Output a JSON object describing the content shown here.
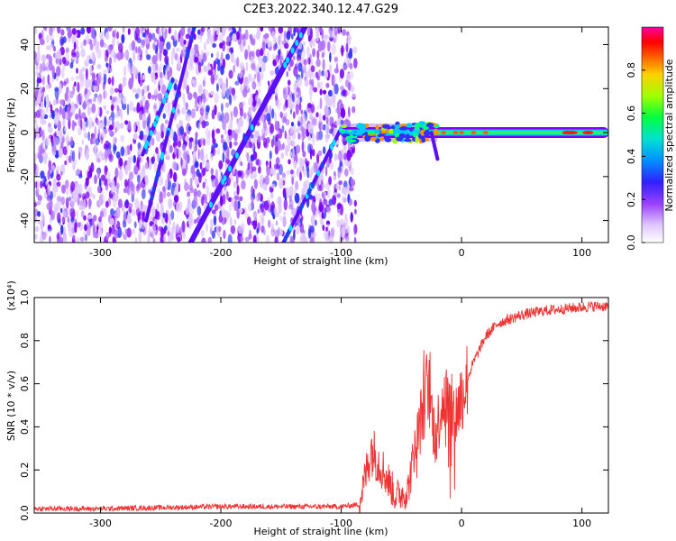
{
  "title": "C2E3.2022.340.12.47.G29",
  "colors": {
    "spectrogram_scale": [
      "#ffffff",
      "#e0c8ff",
      "#b070ff",
      "#7a00ff",
      "#3030ff",
      "#00c8ff",
      "#00ff80",
      "#a0ff00",
      "#ff9000",
      "#ff0000",
      "#ff00a0"
    ],
    "snr_line": "#ee3333",
    "axis": "#000000"
  },
  "chart_data": [
    {
      "type": "heatmap",
      "panel": "spectrogram",
      "xlabel": "Height of straight line (km)",
      "ylabel": "Frequency (Hz)",
      "xlim": [
        -355,
        122
      ],
      "ylim": [
        -50,
        48
      ],
      "xticks": [
        -300,
        -200,
        -100,
        0,
        100
      ],
      "yticks": [
        -40,
        -20,
        0,
        20,
        40
      ],
      "colorbar": {
        "label": "Normalized spectral amplitude",
        "range": [
          0.0,
          1.0
        ],
        "ticks": [
          "0.0",
          "0.2",
          "0.4",
          "0.6",
          "0.8"
        ]
      },
      "features": {
        "noise_region_x": [
          -355,
          -88
        ],
        "signal_band_center_hz": 0,
        "signal_band_x": [
          -100,
          122
        ],
        "diagonal_lines": [
          {
            "x_start": -225,
            "y_start": -50,
            "x_end": -130,
            "y_end": 48
          },
          {
            "x_start": -262,
            "y_start": -40,
            "x_end": -222,
            "y_end": 48
          },
          {
            "x_start": -148,
            "y_start": -50,
            "x_end": -100,
            "y_end": 2
          },
          {
            "x_start": -265,
            "y_start": -10,
            "x_end": -240,
            "y_end": 24
          }
        ]
      }
    },
    {
      "type": "line",
      "panel": "snr",
      "xlabel": "Height of straight line (km)",
      "ylabel": "SNR (10 * v/v)",
      "y_multiplier": "(x10⁴)",
      "xlim": [
        -355,
        122
      ],
      "ylim": [
        0,
        1.0
      ],
      "xticks": [
        -300,
        -200,
        -100,
        0,
        100
      ],
      "yticks": [
        "0.0",
        "0.2",
        "0.4",
        "0.6",
        "0.8",
        "1.0"
      ],
      "series": [
        {
          "x": [
            -355,
            -300,
            -250,
            -200,
            -150,
            -100,
            -85,
            -75,
            -65,
            -55,
            -45,
            -35,
            -28,
            -22,
            -15,
            -10,
            -5,
            0,
            10,
            20,
            30,
            50,
            70,
            90,
            110,
            122
          ],
          "y": [
            0.02,
            0.02,
            0.025,
            0.03,
            0.03,
            0.03,
            0.04,
            0.3,
            0.2,
            0.08,
            0.1,
            0.4,
            0.6,
            0.35,
            0.55,
            0.5,
            0.45,
            0.55,
            0.7,
            0.82,
            0.88,
            0.92,
            0.94,
            0.95,
            0.96,
            0.96
          ]
        }
      ]
    }
  ]
}
